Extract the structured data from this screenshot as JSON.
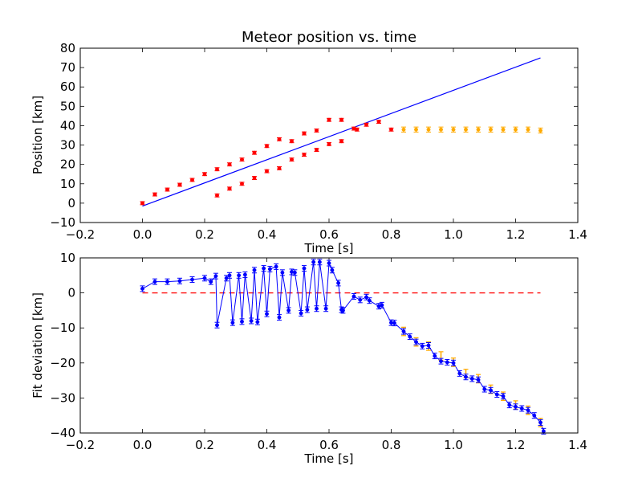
{
  "chart_data": [
    {
      "type": "scatter",
      "title": "Meteor position vs. time",
      "xlabel": "Time [s]",
      "ylabel": "Position [km]",
      "xlim": [
        -0.2,
        1.4
      ],
      "ylim": [
        -10,
        80
      ],
      "xticks": [
        -0.2,
        0.0,
        0.2,
        0.4,
        0.6,
        0.8,
        1.0,
        1.2,
        1.4
      ],
      "xtick_labels": [
        "−0.2",
        "0.0",
        "0.2",
        "0.4",
        "0.6",
        "0.8",
        "1.0",
        "1.2",
        "1.4"
      ],
      "yticks": [
        -10,
        0,
        10,
        20,
        30,
        40,
        50,
        60,
        70,
        80
      ],
      "ytick_labels": [
        "−10",
        "0",
        "10",
        "20",
        "30",
        "40",
        "50",
        "60",
        "70",
        "80"
      ],
      "colors": {
        "fit": "#0000ff",
        "red_points": "#ff0000",
        "orange_points": "#ffaa00"
      },
      "fit_line": {
        "x": [
          0.0,
          1.28
        ],
        "y": [
          -1.5,
          75
        ]
      },
      "series": [
        {
          "color": "#ff0000",
          "x": [
            0.0,
            0.04,
            0.08,
            0.12,
            0.16,
            0.2,
            0.24,
            0.28,
            0.32,
            0.36,
            0.4,
            0.44,
            0.48,
            0.52,
            0.56,
            0.6,
            0.64,
            0.68,
            0.72,
            0.76,
            0.8,
            0.24,
            0.28,
            0.32,
            0.36,
            0.4,
            0.44,
            0.48,
            0.52,
            0.56,
            0.6,
            0.64,
            0.69
          ],
          "y": [
            0,
            4.5,
            7,
            9.5,
            12,
            15,
            17.5,
            20,
            22.5,
            26,
            29.5,
            33,
            32,
            36,
            37.5,
            43,
            43,
            38.5,
            40.5,
            42,
            38,
            4,
            7.5,
            10,
            13,
            16.5,
            18,
            22.5,
            25,
            27.5,
            30.5,
            32,
            38
          ],
          "yerr": 0.8
        },
        {
          "color": "#ffaa00",
          "x": [
            0.84,
            0.88,
            0.92,
            0.96,
            1.0,
            1.04,
            1.08,
            1.12,
            1.16,
            1.2,
            1.24,
            1.28
          ],
          "y": [
            38,
            38,
            38,
            38,
            38,
            38,
            38,
            38,
            38,
            38,
            38,
            37.5
          ],
          "yerr": 1.3
        }
      ]
    },
    {
      "type": "line",
      "title": "",
      "xlabel": "Time [s]",
      "ylabel": "Fit deviation [km]",
      "xlim": [
        -0.2,
        1.4
      ],
      "ylim": [
        -40,
        10
      ],
      "xticks": [
        -0.2,
        0.0,
        0.2,
        0.4,
        0.6,
        0.8,
        1.0,
        1.2,
        1.4
      ],
      "xtick_labels": [
        "−0.2",
        "0.0",
        "0.2",
        "0.4",
        "0.6",
        "0.8",
        "1.0",
        "1.2",
        "1.4"
      ],
      "yticks": [
        -40,
        -30,
        -20,
        -10,
        0,
        10
      ],
      "ytick_labels": [
        "−40",
        "−30",
        "−20",
        "−10",
        "0",
        "10"
      ],
      "colors": {
        "line": "#0000ff",
        "zero_line": "#ff0000",
        "orange_points": "#ffaa00"
      },
      "zero_line": {
        "x": [
          0.0,
          1.28
        ],
        "y": 0
      },
      "series": [
        {
          "color": "#0000ff",
          "x": [
            0.0,
            0.04,
            0.08,
            0.12,
            0.16,
            0.2,
            0.22,
            0.236,
            0.24,
            0.27,
            0.28,
            0.29,
            0.31,
            0.32,
            0.33,
            0.35,
            0.36,
            0.37,
            0.39,
            0.4,
            0.41,
            0.43,
            0.44,
            0.45,
            0.47,
            0.48,
            0.49,
            0.51,
            0.52,
            0.53,
            0.55,
            0.56,
            0.57,
            0.59,
            0.6,
            0.61,
            0.63,
            0.64,
            0.645,
            0.68,
            0.7,
            0.72,
            0.73,
            0.76,
            0.77,
            0.8,
            0.81,
            0.84,
            0.86,
            0.88,
            0.9,
            0.92,
            0.94,
            0.96,
            0.98,
            1.0,
            1.02,
            1.04,
            1.06,
            1.08,
            1.1,
            1.12,
            1.14,
            1.16,
            1.18,
            1.2,
            1.22,
            1.24,
            1.26,
            1.28,
            1.29
          ],
          "y": [
            1.2,
            3.2,
            3.2,
            3.4,
            3.8,
            4.2,
            3.2,
            4.8,
            -9.2,
            4.2,
            5.0,
            -8.5,
            5.0,
            -8.2,
            5.2,
            -8.0,
            6.5,
            -8.3,
            7.0,
            -6.0,
            6.8,
            7.5,
            -7.0,
            5.8,
            -5.0,
            6.0,
            5.8,
            -5.8,
            7.0,
            -4.8,
            8.8,
            -4.5,
            8.8,
            -4.5,
            8.5,
            6.5,
            2.8,
            -4.8,
            -5.0,
            -1.0,
            -2.0,
            -1.2,
            -2.2,
            -3.8,
            -3.5,
            -8.5,
            -8.6,
            -11,
            -12.5,
            -14,
            -15.2,
            -15,
            -18,
            -19.5,
            -19.8,
            -20,
            -23,
            -24,
            -24.5,
            -24.8,
            -27.5,
            -27.8,
            -29,
            -29.5,
            -32,
            -32.5,
            -33,
            -33.5,
            -35,
            -37,
            -39.5
          ],
          "yerr": 0.8
        }
      ],
      "orange_points": {
        "x": [
          0.84,
          0.88,
          0.92,
          0.96,
          1.0,
          1.04,
          1.08,
          1.12,
          1.16,
          1.2,
          1.24,
          1.28
        ],
        "y": [
          -11,
          -14,
          -15.2,
          -18,
          -19.8,
          -23,
          -24.5,
          -27.5,
          -29.5,
          -32,
          -33.5,
          -37
        ],
        "yerr": 1.2
      }
    }
  ]
}
